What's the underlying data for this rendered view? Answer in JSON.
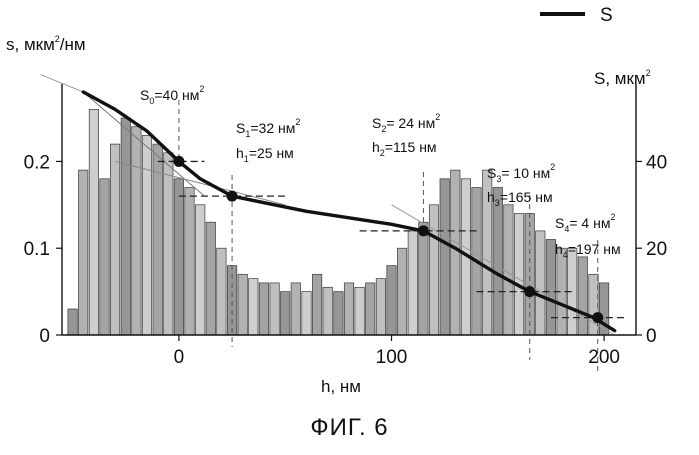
{
  "figure_caption": "ФИГ. 6",
  "chart_data": {
    "type": "bar+line",
    "legend": [
      {
        "label": "S",
        "color": "#111111"
      }
    ],
    "xlabel": "h, нм",
    "ylabel_left": "s, мкм²/нм",
    "ylabel_right": "S, мкм²",
    "xlim": [
      -55,
      215
    ],
    "ylim_left": [
      0,
      0.28
    ],
    "ylim_right": [
      0,
      56
    ],
    "x_ticks": [
      "0",
      "100",
      "200"
    ],
    "y_left_ticks": [
      "0",
      "0.1",
      "0.2"
    ],
    "y_right_ticks": [
      "0",
      "20",
      "40"
    ],
    "histogram": {
      "name": "s",
      "bin_width": 5,
      "x": [
        -50,
        -45,
        -40,
        -35,
        -30,
        -25,
        -20,
        -15,
        -10,
        -5,
        0,
        5,
        10,
        15,
        20,
        25,
        30,
        35,
        40,
        45,
        50,
        55,
        60,
        65,
        70,
        75,
        80,
        85,
        90,
        95,
        100,
        105,
        110,
        115,
        120,
        125,
        130,
        135,
        140,
        145,
        150,
        155,
        160,
        165,
        170,
        175,
        180,
        185,
        190,
        195,
        200
      ],
      "values": [
        0.03,
        0.19,
        0.26,
        0.18,
        0.22,
        0.25,
        0.24,
        0.23,
        0.22,
        0.21,
        0.18,
        0.17,
        0.15,
        0.13,
        0.1,
        0.08,
        0.07,
        0.065,
        0.06,
        0.06,
        0.05,
        0.06,
        0.05,
        0.07,
        0.055,
        0.05,
        0.06,
        0.055,
        0.06,
        0.065,
        0.08,
        0.1,
        0.12,
        0.13,
        0.15,
        0.18,
        0.19,
        0.18,
        0.17,
        0.19,
        0.17,
        0.15,
        0.14,
        0.14,
        0.12,
        0.11,
        0.1,
        0.1,
        0.09,
        0.07,
        0.06
      ]
    },
    "cumulative": {
      "name": "S",
      "x": [
        -45,
        -30,
        -15,
        0,
        10,
        25,
        40,
        60,
        80,
        100,
        115,
        130,
        150,
        165,
        180,
        195,
        205
      ],
      "values": [
        56,
        52,
        47,
        40,
        36,
        32,
        30.5,
        28.5,
        27,
        25.5,
        24,
        20,
        14,
        10,
        7,
        4,
        1
      ]
    },
    "points": [
      {
        "h": 0,
        "S": 40,
        "label_s": "S",
        "sub_s": "0",
        "val_s": "=40 нм",
        "sup_s": "2"
      },
      {
        "h": 25,
        "S": 32,
        "label_s": "S",
        "sub_s": "1",
        "val_s": "=32 нм",
        "sup_s": "2",
        "label_h": "h",
        "sub_h": "1",
        "val_h": "=25 нм"
      },
      {
        "h": 115,
        "S": 24,
        "label_s": "S",
        "sub_s": "2",
        "val_s": "= 24 нм",
        "sup_s": "2",
        "label_h": "h",
        "sub_h": "2",
        "val_h": "=115 нм"
      },
      {
        "h": 165,
        "S": 10,
        "label_s": "S",
        "sub_s": "3",
        "val_s": "= 10 нм",
        "sup_s": "2",
        "label_h": "h",
        "sub_h": "3",
        "val_h": "=165 нм"
      },
      {
        "h": 197,
        "S": 4,
        "label_s": "S",
        "sub_s": "4",
        "val_s": "= 4 нм",
        "sup_s": "2",
        "label_h": "h",
        "sub_h": "4",
        "val_h": "=197 нм"
      }
    ]
  }
}
